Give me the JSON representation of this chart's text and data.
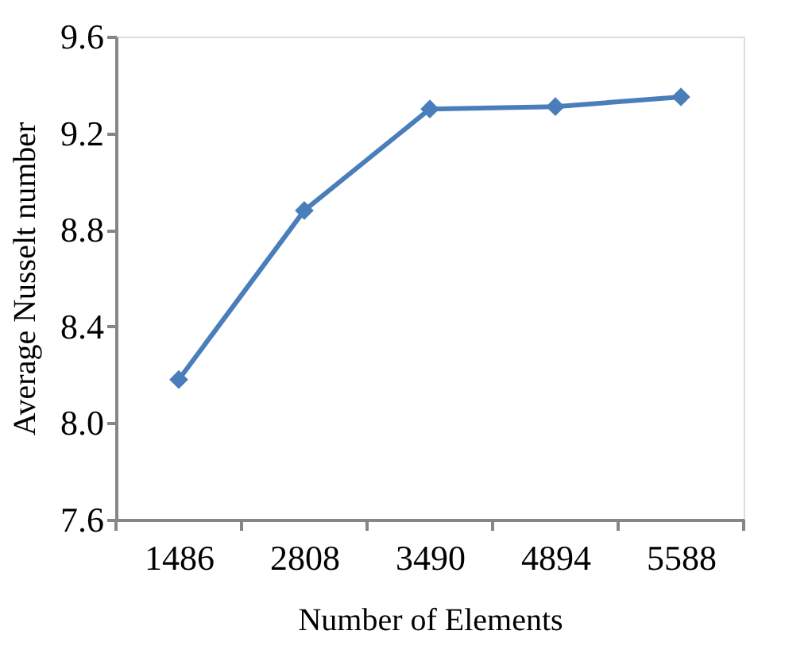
{
  "chart_data": {
    "type": "line",
    "xlabel": "Number of Elements",
    "ylabel": "Average Nusselt number",
    "categories": [
      "1486",
      "2808",
      "3490",
      "4894",
      "5588"
    ],
    "series": [
      {
        "color": "#4a7ebb",
        "values": [
          8.18,
          8.88,
          9.3,
          9.31,
          9.35
        ]
      }
    ],
    "ylim": [
      7.6,
      9.6
    ],
    "yticks": [
      {
        "value": 7.6,
        "label": "7.6"
      },
      {
        "value": 8.0,
        "label": "8.0"
      },
      {
        "value": 8.4,
        "label": "8.4"
      },
      {
        "value": 8.8,
        "label": "8.8"
      },
      {
        "value": 9.2,
        "label": "9.2"
      },
      {
        "value": 9.6,
        "label": "9.6"
      }
    ],
    "grid": false,
    "legend": false,
    "marker": "diamond",
    "line_style": "solid"
  }
}
